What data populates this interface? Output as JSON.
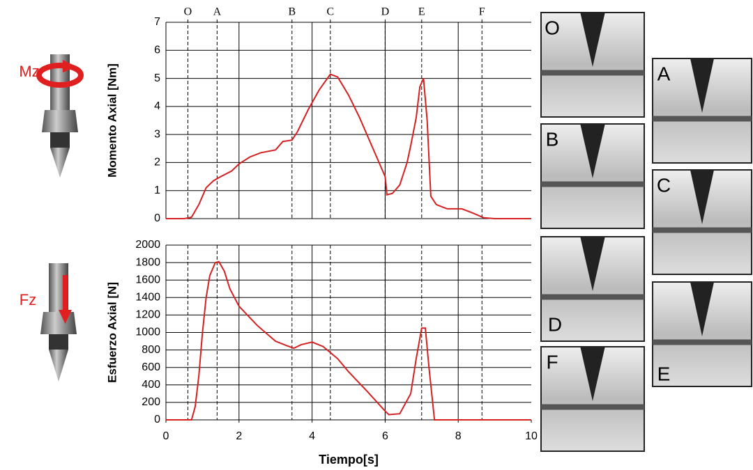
{
  "chart_data": [
    {
      "type": "line",
      "y_label": "Momento Axial [Nm]",
      "color": "#d42020",
      "xlim": [
        0,
        10
      ],
      "ylim": [
        0,
        7
      ],
      "yticks": [
        0,
        1,
        2,
        3,
        4,
        5,
        6,
        7
      ],
      "vertical_grid": [
        2,
        4,
        6,
        8
      ],
      "markers": [
        {
          "label": "O",
          "x": 0.6
        },
        {
          "label": "A",
          "x": 1.4
        },
        {
          "label": "B",
          "x": 3.45
        },
        {
          "label": "C",
          "x": 4.5
        },
        {
          "label": "D",
          "x": 6.0
        },
        {
          "label": "E",
          "x": 7.0
        },
        {
          "label": "F",
          "x": 8.65
        }
      ],
      "x": [
        0,
        0.5,
        0.7,
        0.9,
        1.1,
        1.3,
        1.5,
        1.8,
        2.0,
        2.3,
        2.6,
        3.0,
        3.2,
        3.45,
        3.6,
        3.9,
        4.2,
        4.5,
        4.7,
        5.0,
        5.3,
        5.6,
        5.9,
        6.0,
        6.05,
        6.2,
        6.4,
        6.6,
        6.7,
        6.85,
        6.95,
        7.05,
        7.15,
        7.25,
        7.4,
        7.7,
        8.1,
        8.4,
        8.7,
        9.0,
        10
      ],
      "values": [
        0,
        0,
        0.05,
        0.5,
        1.1,
        1.35,
        1.5,
        1.7,
        1.95,
        2.2,
        2.35,
        2.45,
        2.75,
        2.8,
        3.1,
        3.9,
        4.6,
        5.15,
        5.05,
        4.4,
        3.6,
        2.7,
        1.8,
        1.5,
        0.85,
        0.9,
        1.2,
        2.0,
        2.6,
        3.6,
        4.7,
        5.0,
        3.5,
        0.8,
        0.5,
        0.35,
        0.35,
        0.2,
        0.03,
        0,
        0
      ]
    },
    {
      "type": "line",
      "y_label": "Esfuerzo Axial [N]",
      "x_label": "Tiempo[s]",
      "color": "#d42020",
      "xlim": [
        0,
        10
      ],
      "xticks": [
        0,
        2,
        4,
        6,
        8,
        10
      ],
      "ylim": [
        0,
        2000
      ],
      "yticks": [
        0,
        200,
        400,
        600,
        800,
        1000,
        1200,
        1400,
        1600,
        1800,
        2000
      ],
      "vertical_grid": [
        2,
        4,
        6,
        8
      ],
      "markers_x": [
        0.6,
        1.4,
        3.45,
        4.5,
        6.0,
        7.0,
        8.65
      ],
      "x": [
        0,
        0.7,
        0.8,
        0.9,
        1.0,
        1.1,
        1.2,
        1.35,
        1.45,
        1.6,
        1.75,
        2.0,
        2.5,
        3.0,
        3.3,
        3.5,
        3.7,
        4.0,
        4.3,
        4.7,
        5.0,
        5.5,
        6.0,
        6.1,
        6.4,
        6.7,
        6.85,
        7.0,
        7.1,
        7.2,
        7.35,
        10
      ],
      "values": [
        0,
        0,
        150,
        500,
        1000,
        1400,
        1650,
        1800,
        1810,
        1700,
        1500,
        1300,
        1080,
        900,
        850,
        820,
        860,
        890,
        840,
        700,
        550,
        330,
        100,
        60,
        70,
        300,
        700,
        1050,
        1050,
        600,
        0,
        0
      ]
    }
  ],
  "icons": {
    "top_label": "Mz",
    "bottom_label": "Fz"
  },
  "photo_panels": {
    "left": [
      "O",
      "B",
      "D",
      "F"
    ],
    "right": [
      "A",
      "C",
      "E"
    ]
  }
}
